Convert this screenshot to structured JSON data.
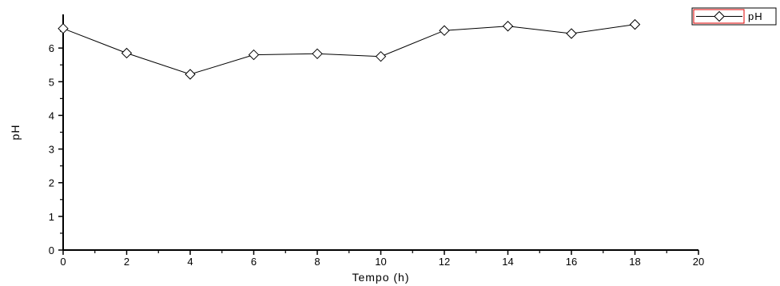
{
  "chart_data": {
    "type": "line",
    "xlabel": "Tempo (h)",
    "ylabel": "pH",
    "xlim": [
      0,
      20
    ],
    "ylim": [
      0,
      7
    ],
    "x_ticks": [
      0,
      2,
      4,
      6,
      8,
      10,
      12,
      14,
      16,
      18,
      20
    ],
    "y_ticks": [
      0,
      1,
      2,
      3,
      4,
      5,
      6
    ],
    "grid": false,
    "legend_position": "top-right",
    "marker": "diamond-open",
    "series": [
      {
        "name": "pH",
        "x": [
          0,
          2,
          4,
          6,
          8,
          10,
          12,
          14,
          16,
          18
        ],
        "y": [
          6.58,
          5.85,
          5.22,
          5.8,
          5.83,
          5.75,
          6.52,
          6.65,
          6.43,
          6.7
        ]
      }
    ]
  }
}
